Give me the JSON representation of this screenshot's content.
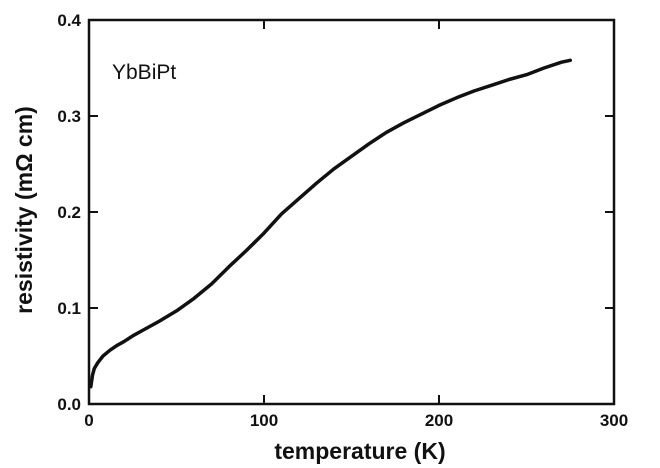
{
  "chart_data": {
    "type": "line",
    "title": "",
    "annotation": "YbBiPt",
    "xlabel": "temperature   (K)",
    "ylabel": "resistivity  (mΩ  cm)",
    "xlim": [
      0,
      300
    ],
    "ylim": [
      0,
      0.4
    ],
    "xticks": [
      0,
      100,
      200,
      300
    ],
    "xtick_labels": [
      "0",
      "100",
      "200",
      "300"
    ],
    "yticks": [
      0.0,
      0.1,
      0.2,
      0.3,
      0.4
    ],
    "ytick_labels": [
      "0.0",
      "0.1",
      "0.2",
      "0.3",
      "0.4"
    ],
    "grid": false,
    "series": [
      {
        "x": [
          1,
          2,
          3,
          5,
          8,
          12,
          16,
          20,
          25,
          30,
          40,
          50,
          60,
          70,
          80,
          90,
          100,
          110,
          120,
          130,
          140,
          150,
          160,
          170,
          180,
          190,
          200,
          210,
          220,
          230,
          240,
          250,
          260,
          270,
          275
        ],
        "y": [
          0.018,
          0.03,
          0.037,
          0.043,
          0.05,
          0.056,
          0.061,
          0.065,
          0.071,
          0.076,
          0.086,
          0.097,
          0.11,
          0.125,
          0.143,
          0.16,
          0.178,
          0.198,
          0.214,
          0.23,
          0.245,
          0.258,
          0.271,
          0.283,
          0.293,
          0.302,
          0.311,
          0.319,
          0.326,
          0.332,
          0.338,
          0.343,
          0.35,
          0.356,
          0.358
        ]
      }
    ]
  }
}
